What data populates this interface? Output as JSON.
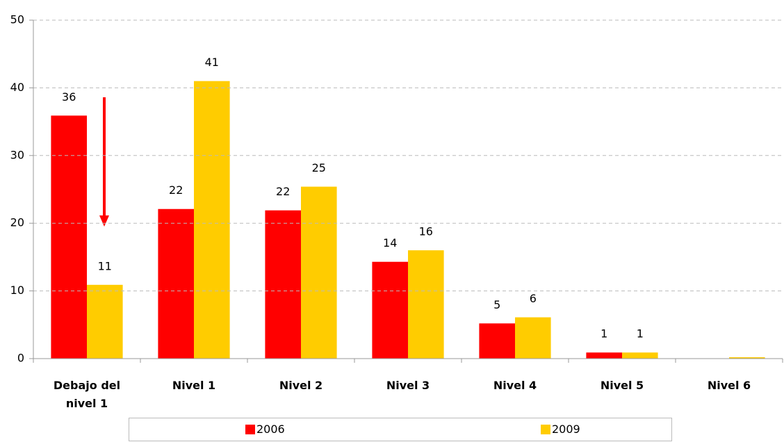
{
  "chart_data": {
    "type": "bar",
    "categories": [
      "Debajo del nivel 1",
      "Nivel 1",
      "Nivel 2",
      "Nivel 3",
      "Nivel 4",
      "Nivel 5",
      "Nivel 6"
    ],
    "series": [
      {
        "name": "2006",
        "color": "#ff0000",
        "values": [
          35.9,
          22.1,
          21.9,
          14.3,
          5.2,
          0.9,
          0
        ],
        "value_labels": [
          "36",
          "22",
          "22",
          "14",
          "5",
          "1",
          null
        ]
      },
      {
        "name": "2009",
        "color": "#ffcc00",
        "values": [
          10.9,
          41,
          25.4,
          16,
          6.1,
          0.9,
          0.2
        ],
        "value_labels": [
          "11",
          "41",
          "25",
          "16",
          "6",
          "1",
          null
        ]
      }
    ],
    "ylim": [
      0,
      50
    ],
    "yticks": [
      0,
      10,
      20,
      30,
      40,
      50
    ],
    "grid": true,
    "legend": "bottom"
  }
}
